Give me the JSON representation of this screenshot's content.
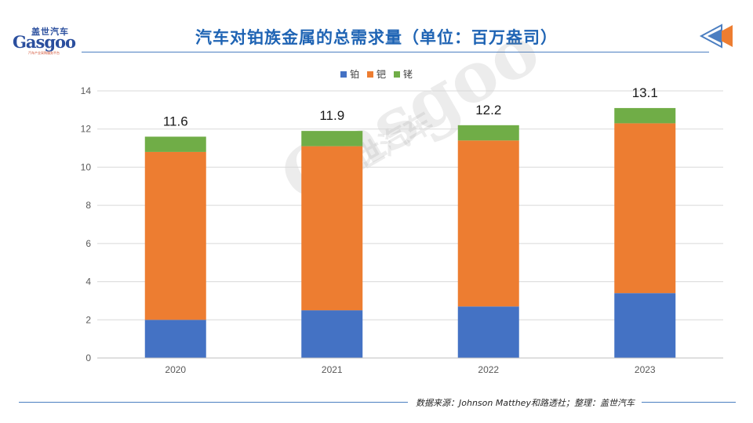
{
  "header": {
    "logo_cn": "盖世汽车",
    "logo_en": "Gasgoo",
    "logo_tagline": "汽车产业采购服务平台",
    "title": "汽车对铂族金属的总需求量（单位：百万盎司）"
  },
  "colors": {
    "title": "#1f64b4",
    "accent_blue": "#4b7ec1",
    "accent_orange": "#ed7d31"
  },
  "chart_data": {
    "type": "bar",
    "stacked": true,
    "title": "",
    "xlabel": "",
    "ylabel": "",
    "categories": [
      "2020",
      "2021",
      "2022",
      "2023"
    ],
    "series": [
      {
        "name": "铂",
        "color": "#4472c4",
        "values": [
          2.0,
          2.5,
          2.7,
          3.4
        ]
      },
      {
        "name": "钯",
        "color": "#ed7d31",
        "values": [
          8.8,
          8.6,
          8.7,
          8.9
        ]
      },
      {
        "name": "铑",
        "color": "#70ad47",
        "values": [
          0.8,
          0.8,
          0.8,
          0.8
        ]
      }
    ],
    "totals": [
      "11.6",
      "11.9",
      "12.2",
      "13.1"
    ],
    "ylim": [
      0,
      14
    ],
    "yticks": [
      "0",
      "2",
      "4",
      "6",
      "8",
      "10",
      "12",
      "14"
    ],
    "grid": true,
    "legend_position": "top"
  },
  "watermark": {
    "cn": "盖世汽车",
    "en": "Gasgoo"
  },
  "footer": {
    "source": "数据来源：Johnson Matthey和路透社；整理：盖世汽车"
  }
}
